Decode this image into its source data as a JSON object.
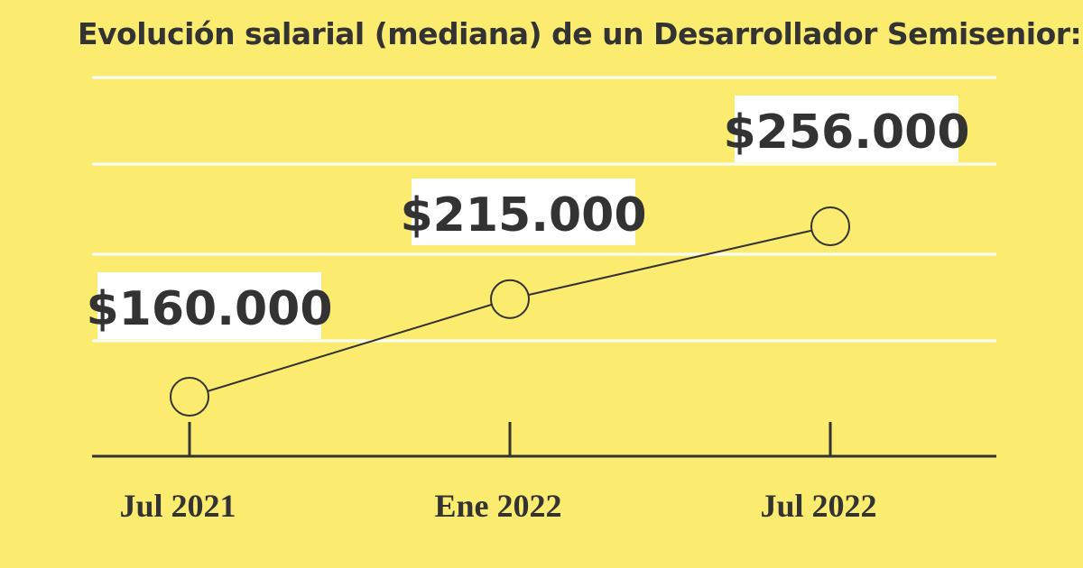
{
  "chart_data": {
    "type": "line",
    "title": "Evolución salarial (mediana) de un Desarrollador Semisenior:",
    "categories": [
      "Jul  2021",
      "Ene 2022",
      "Jul 2022"
    ],
    "values": [
      160000,
      215000,
      256000
    ],
    "data_labels": [
      "$160.000",
      "$215.000",
      "$256.000"
    ],
    "grid": true,
    "legend": "none"
  },
  "colors": {
    "background": "#fbec6f",
    "text": "#333333",
    "gridline": "#ffffff",
    "label_background": "#ffffff",
    "line": "#333333"
  }
}
